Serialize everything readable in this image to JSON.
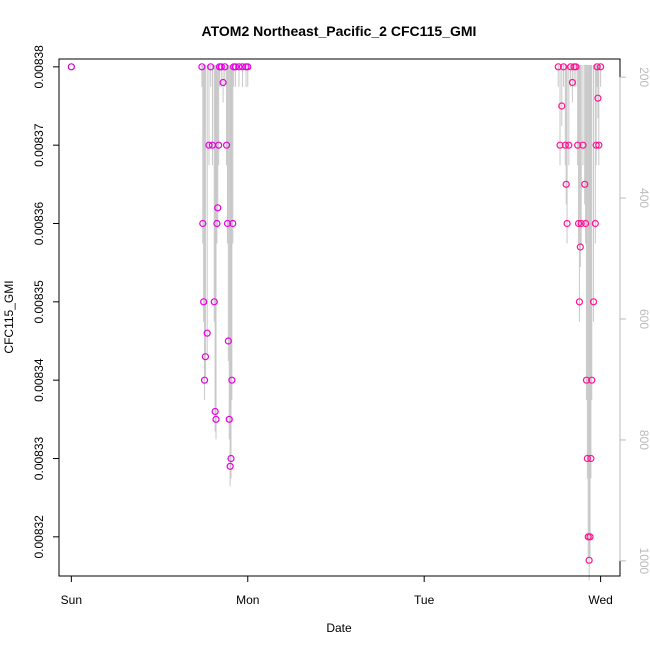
{
  "chart_data": {
    "type": "scatter",
    "title": "ATOM2 Northeast_Pacific_2 CFC115_GMI",
    "xlabel": "Date",
    "ylabel": "CFC115_GMI",
    "x_ticks": [
      "Sun",
      "Mon",
      "Tue",
      "Wed"
    ],
    "x_range_days": [
      -0.07,
      3.11
    ],
    "y_ticks": [
      0.00832,
      0.00833,
      0.00834,
      0.00835,
      0.00836,
      0.00837,
      0.00838
    ],
    "y_tick_labels": [
      "0.00832",
      "0.00833",
      "0.00834",
      "0.00835",
      "0.00836",
      "0.00837",
      "0.00838"
    ],
    "ylim": [
      0.008315,
      0.008381
    ],
    "right_axis": {
      "ticks": [
        200,
        400,
        600,
        800,
        1000
      ],
      "tick_labels": [
        "200",
        "400",
        "600",
        "800",
        "1000"
      ],
      "range": [
        1025,
        170
      ],
      "color": "#bbbbbb"
    },
    "grid": false,
    "colors": {
      "early": "#d400d4",
      "mid": "#e800e0",
      "late": "#ff1493",
      "pressure_line": "#c8c8c8"
    },
    "series": [
      {
        "points": [
          [
            0.0,
            0.00838
          ],
          [
            0.74,
            0.00838
          ],
          [
            0.745,
            0.00836
          ],
          [
            0.75,
            0.00835
          ],
          [
            0.755,
            0.00834
          ],
          [
            0.76,
            0.008343
          ],
          [
            0.77,
            0.008346
          ],
          [
            0.78,
            0.00837
          ],
          [
            0.79,
            0.00838
          ],
          [
            0.8,
            0.00837
          ],
          [
            0.81,
            0.00835
          ],
          [
            0.815,
            0.008336
          ],
          [
            0.82,
            0.008335
          ],
          [
            0.825,
            0.00836
          ],
          [
            0.83,
            0.008362
          ],
          [
            0.835,
            0.00837
          ],
          [
            0.84,
            0.00838
          ],
          [
            0.85,
            0.00838
          ],
          [
            0.86,
            0.008378
          ],
          [
            0.87,
            0.00838
          ],
          [
            0.88,
            0.00837
          ],
          [
            0.885,
            0.00836
          ],
          [
            0.89,
            0.008345
          ],
          [
            0.895,
            0.008335
          ],
          [
            0.9,
            0.008329
          ],
          [
            0.905,
            0.00833
          ],
          [
            0.91,
            0.00834
          ],
          [
            0.915,
            0.00836
          ],
          [
            0.92,
            0.00838
          ],
          [
            0.93,
            0.00838
          ],
          [
            0.95,
            0.00838
          ],
          [
            0.97,
            0.00838
          ],
          [
            0.99,
            0.00838
          ],
          [
            1.0,
            0.00838
          ],
          [
            2.76,
            0.00838
          ],
          [
            2.77,
            0.00837
          ],
          [
            2.78,
            0.008375
          ],
          [
            2.79,
            0.00838
          ],
          [
            2.8,
            0.00837
          ],
          [
            2.805,
            0.008365
          ],
          [
            2.81,
            0.00836
          ],
          [
            2.82,
            0.00837
          ],
          [
            2.83,
            0.00838
          ],
          [
            2.84,
            0.008378
          ],
          [
            2.85,
            0.00838
          ],
          [
            2.86,
            0.00838
          ],
          [
            2.87,
            0.00837
          ],
          [
            2.875,
            0.00836
          ],
          [
            2.88,
            0.00835
          ],
          [
            2.885,
            0.008357
          ],
          [
            2.89,
            0.00836
          ],
          [
            2.9,
            0.00837
          ],
          [
            2.91,
            0.008365
          ],
          [
            2.915,
            0.00836
          ],
          [
            2.92,
            0.00834
          ],
          [
            2.925,
            0.00833
          ],
          [
            2.93,
            0.00832
          ],
          [
            2.935,
            0.008317
          ],
          [
            2.94,
            0.00832
          ],
          [
            2.945,
            0.00833
          ],
          [
            2.95,
            0.00834
          ],
          [
            2.96,
            0.00835
          ],
          [
            2.97,
            0.00836
          ],
          [
            2.975,
            0.00837
          ],
          [
            2.98,
            0.00838
          ],
          [
            2.985,
            0.008376
          ],
          [
            2.99,
            0.00837
          ],
          [
            3.0,
            0.00838
          ]
        ]
      }
    ]
  }
}
